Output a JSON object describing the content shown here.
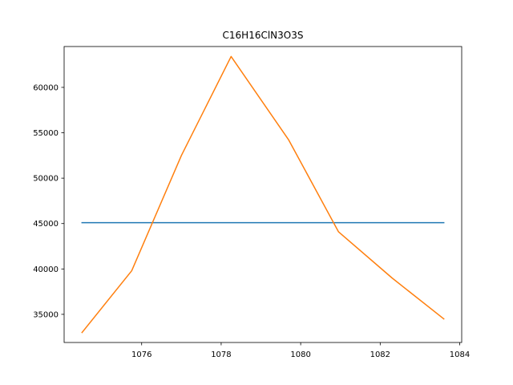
{
  "chart_data": {
    "type": "line",
    "title": "C16H16ClN3O3S",
    "xlabel": "",
    "ylabel": "",
    "xlim": [
      1074.05,
      1084.05
    ],
    "ylim": [
      31900,
      64500
    ],
    "xticks": [
      1076,
      1078,
      1080,
      1082,
      1084
    ],
    "yticks": [
      35000,
      40000,
      45000,
      50000,
      55000,
      60000
    ],
    "grid": false,
    "series": [
      {
        "color": "#1f77b4",
        "points": [
          [
            1074.5,
            45100
          ],
          [
            1083.6,
            45100
          ]
        ]
      },
      {
        "color": "#ff7f0e",
        "points": [
          [
            1074.5,
            33000
          ],
          [
            1075.75,
            39800
          ],
          [
            1077.0,
            52500
          ],
          [
            1078.25,
            63400
          ],
          [
            1079.7,
            54200
          ],
          [
            1080.95,
            44100
          ],
          [
            1082.3,
            39000
          ],
          [
            1083.6,
            34500
          ]
        ]
      }
    ]
  }
}
